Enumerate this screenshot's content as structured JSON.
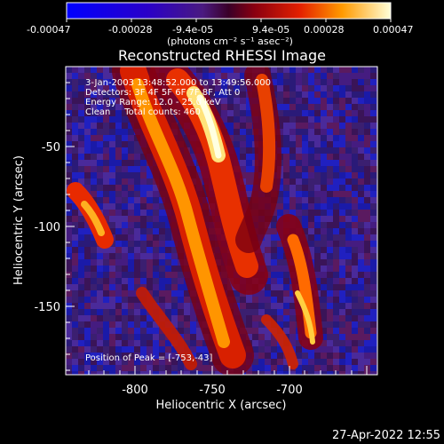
{
  "colorbar": {
    "tick_labels": [
      "-0.00047",
      "-0.00028",
      "-9.4e-05",
      "9.4e-05",
      "0.00028",
      "0.00047"
    ],
    "units_label": "(photons cm⁻² s⁻¹ asec⁻²)"
  },
  "plot": {
    "title": "Reconstructed RHESSI Image",
    "info_lines": [
      "3-Jan-2003 13:48:52.000 to 13:49:56.000",
      "Detectors: 3F 4F 5F 6F 7F 8F, Att 0",
      "Energy Range: 12.0 - 25.0 keV",
      "Clean     Total counts: 460"
    ],
    "peak_text": "Position of Peak = [-753,-43]",
    "xlabel": "Heliocentric X (arcsec)",
    "ylabel": "Heliocentric Y (arcsec)",
    "x_ticks": [
      "-800",
      "-750",
      "-700"
    ],
    "y_ticks": [
      "-50",
      "-100",
      "-150"
    ]
  },
  "footer": {
    "timestamp": "27-Apr-2022 12:55"
  }
}
